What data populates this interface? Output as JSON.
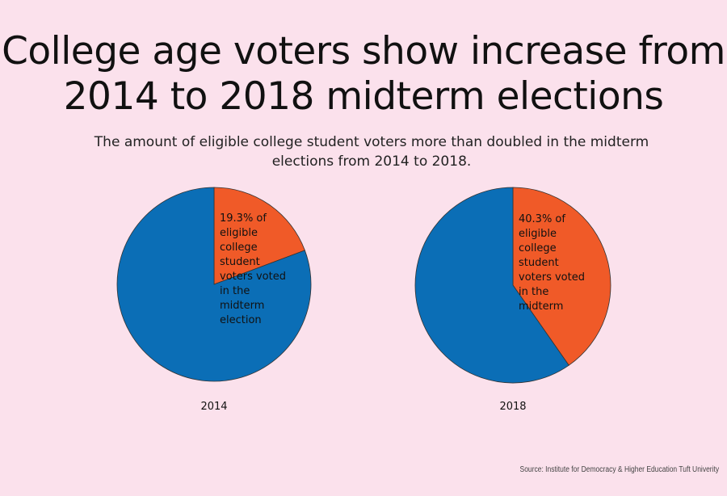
{
  "title": "College age voters show increase from 2014 to 2018 midterm elections",
  "subtitle": "The amount of eligible college student voters more than doubled in the midterm elections from 2014 to 2018.",
  "source": "Source: Institute for Democracy & Higher Education Tuft Univerity",
  "colors": {
    "background": "#fbe1ec",
    "voted": "#f05a28",
    "not_voted": "#0b6eb6"
  },
  "chart_data": [
    {
      "type": "pie",
      "xlabel": "2014",
      "slices": [
        {
          "value": 19.3,
          "color": "#f05a28"
        },
        {
          "value": 80.7,
          "color": "#0b6eb6"
        }
      ],
      "annotation": [
        "19.3% of",
        "eligible",
        "college",
        "student",
        "voters voted",
        "in the",
        "midterm",
        "election"
      ]
    },
    {
      "type": "pie",
      "xlabel": "2018",
      "slices": [
        {
          "value": 40.3,
          "color": "#f05a28"
        },
        {
          "value": 59.7,
          "color": "#0b6eb6"
        }
      ],
      "annotation": [
        "40.3% of",
        "eligible",
        "college",
        "student",
        "voters voted",
        "in the",
        "midterm"
      ]
    }
  ]
}
